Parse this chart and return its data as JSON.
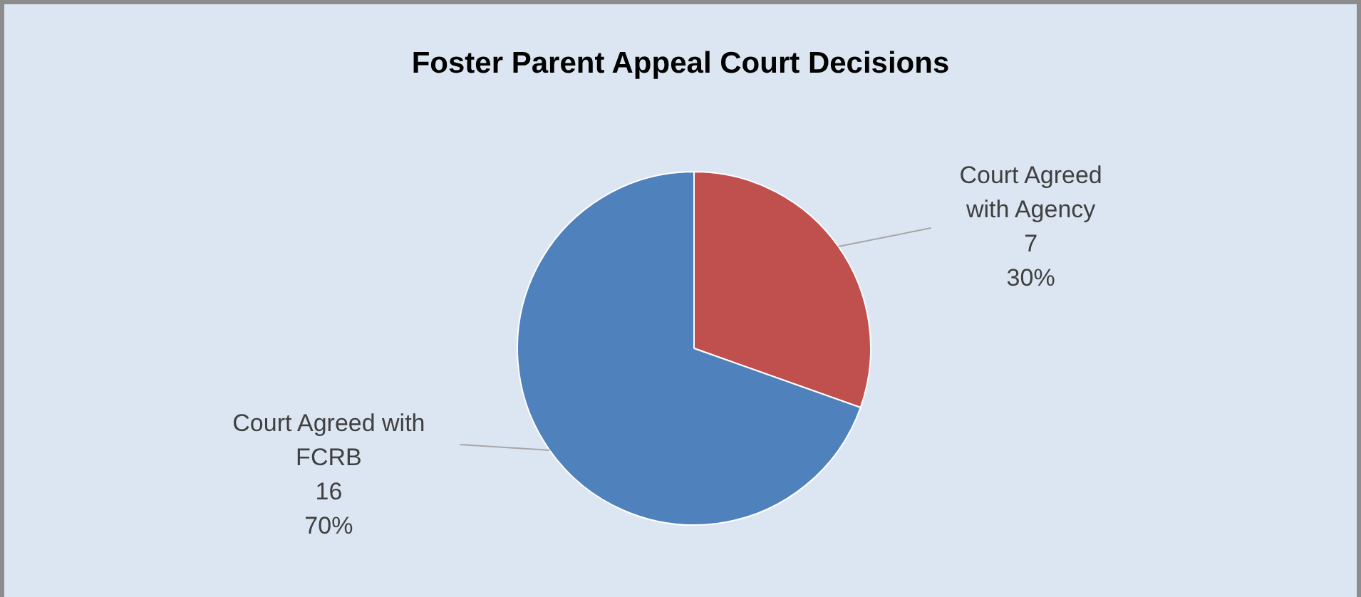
{
  "chart_data": {
    "type": "pie",
    "title": "Foster Parent Appeal Court Decisions",
    "categories": [
      "Court Agreed with Agency",
      "Court Agreed with FCRB"
    ],
    "values": [
      7,
      16
    ],
    "colors": [
      "#c0504d",
      "#4f81bd"
    ],
    "value_labels": [
      "7\n30%",
      "16\n70%"
    ],
    "legend": false
  }
}
